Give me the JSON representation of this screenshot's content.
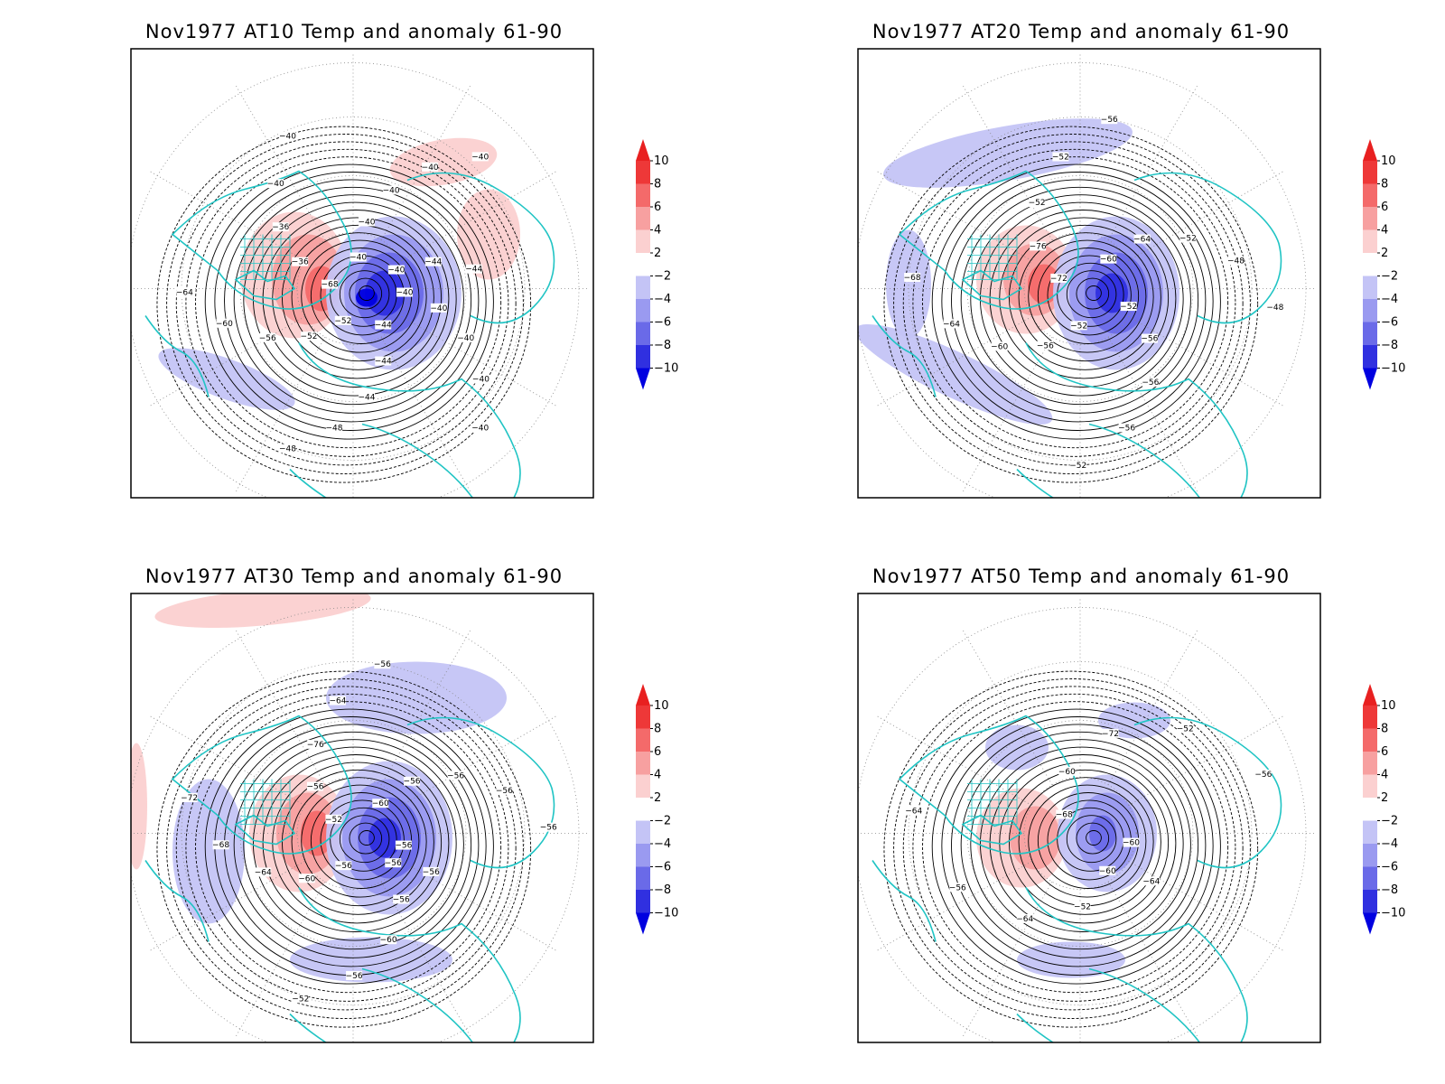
{
  "colors": {
    "coast": "#20c4c4",
    "contour": "#000000",
    "colorbar": {
      "6_8": "#f46a6a",
      "4_6": "#f7a0a0",
      "2_4": "#fbd0d0",
      "neg2_neg4": "#c4c4f6",
      "neg4_neg6": "#9a9af0",
      "neg6_neg8": "#6a6ae8",
      "neg8_neg10": "#3030e0",
      "over": "#e82020",
      "8_10": "#ee3838",
      "under": "#0000e0"
    }
  },
  "colorbar": {
    "labels": [
      "10",
      "8",
      "6",
      "4",
      "2",
      "−2",
      "−4",
      "−6",
      "−8",
      "−10"
    ]
  },
  "panels": [
    {
      "title": "Nov1977 AT10 Temp and anomaly 61-90",
      "contour_labels": [
        "-40",
        "-40",
        "-40",
        "-40",
        "-40",
        "-44",
        "-44",
        "-44",
        "-48",
        "-48",
        "-52",
        "-52",
        "-56",
        "-60",
        "-64",
        "-68",
        "-36",
        "-36",
        "-40",
        "-40",
        "-40",
        "-40",
        "-40",
        "-40",
        "-40",
        "-40",
        "-44",
        "-44"
      ]
    },
    {
      "title": "Nov1977 AT20 Temp and anomaly 61-90",
      "contour_labels": [
        "-52",
        "-56",
        "-56",
        "-56",
        "-52",
        "-52",
        "-56",
        "-60",
        "-64",
        "-68",
        "-72",
        "-76",
        "-52",
        "-52",
        "-56",
        "-60",
        "-64",
        "-52",
        "-48",
        "-48"
      ]
    },
    {
      "title": "Nov1977 AT30 Temp and anomaly 61-90",
      "contour_labels": [
        "-56",
        "-56",
        "-60",
        "-56",
        "-52",
        "-56",
        "-60",
        "-64",
        "-68",
        "-72",
        "-52",
        "-56",
        "-76",
        "-64",
        "-56",
        "-60",
        "-56",
        "-56",
        "-56",
        "-56",
        "-56",
        "-56"
      ]
    },
    {
      "title": "Nov1977 AT50 Temp and anomaly 61-90",
      "contour_labels": [
        "-60",
        "-52",
        "-64",
        "-56",
        "-64",
        "-68",
        "-60",
        "-72",
        "-52",
        "-56",
        "-60",
        "-64"
      ]
    }
  ]
}
